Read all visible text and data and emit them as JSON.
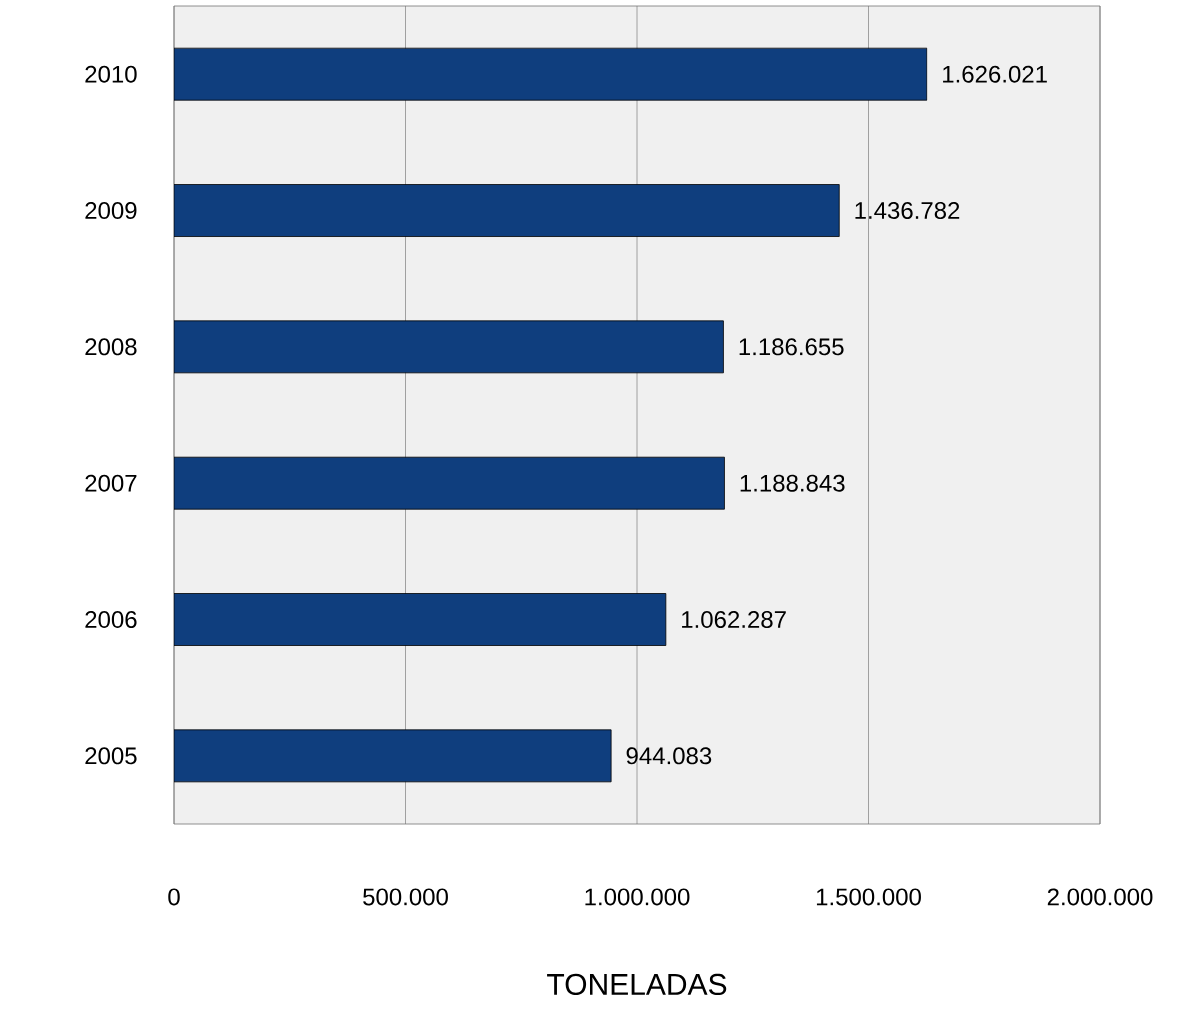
{
  "chart_data": {
    "type": "bar",
    "orientation": "horizontal",
    "xlabel": "TONELADAS",
    "categories": [
      "2010",
      "2009",
      "2008",
      "2007",
      "2006",
      "2005"
    ],
    "values": [
      1626021,
      1436782,
      1186655,
      1188843,
      1062287,
      944083
    ],
    "value_labels": [
      "1.626.021",
      "1.436.782",
      "1.186.655",
      "1.188.843",
      "1.062.287",
      "944.083"
    ],
    "color": "#0f3e7e",
    "xlim": [
      0,
      2000000
    ],
    "xticks": [
      0,
      {
        "value": 500000,
        "label": "500.000"
      },
      {
        "value": 1000000,
        "label": "1.000.000"
      },
      {
        "value": 1500000,
        "label": "1.500.000"
      },
      {
        "value": 2000000,
        "label": "2.000.000"
      }
    ],
    "grid": "x"
  }
}
